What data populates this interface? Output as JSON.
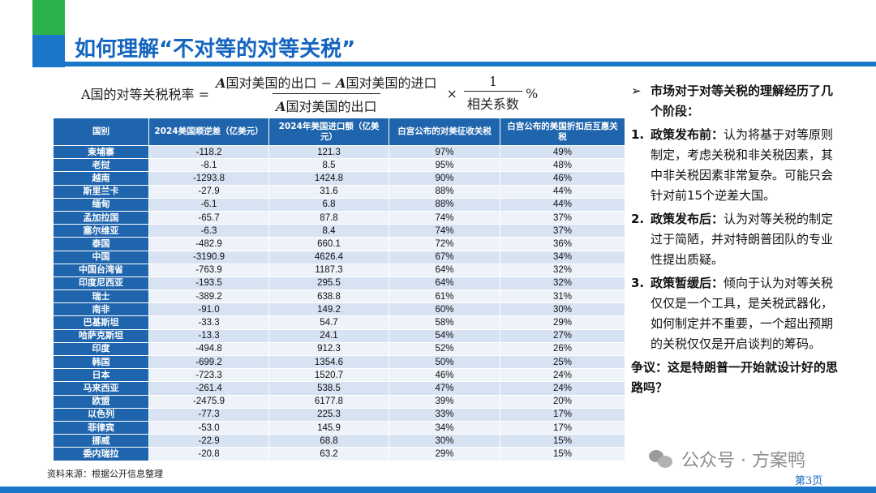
{
  "header": {
    "title": "如何理解“不对等的对等关税”"
  },
  "formula": {
    "lhs": "A国的对等关税税率 =",
    "numerator_a": "A",
    "numerator_text1": "国对美国的出口 − ",
    "numerator_b": "A",
    "numerator_text2": "国对美国的进口",
    "denominator_a": "A",
    "denominator_text": "国对美国的出口",
    "times": "×",
    "frac2_num": "1",
    "frac2_den": "相关系数",
    "percent": "%"
  },
  "table": {
    "headers": [
      "国别",
      "2024美国顺逆差（亿美元）",
      "2024年美国进口额（亿美元）",
      "白宫公布的对美征收关税",
      "白宫公布的美国折扣后互惠关税"
    ],
    "rows": [
      [
        "柬埔寨",
        "-118.2",
        "121.3",
        "97%",
        "49%"
      ],
      [
        "老挝",
        "-8.1",
        "8.5",
        "95%",
        "48%"
      ],
      [
        "越南",
        "-1293.8",
        "1424.8",
        "90%",
        "46%"
      ],
      [
        "斯里兰卡",
        "-27.9",
        "31.6",
        "88%",
        "44%"
      ],
      [
        "缅甸",
        "-6.1",
        "6.8",
        "88%",
        "44%"
      ],
      [
        "孟加拉国",
        "-65.7",
        "87.8",
        "74%",
        "37%"
      ],
      [
        "塞尔维亚",
        "-6.3",
        "8.4",
        "74%",
        "37%"
      ],
      [
        "泰国",
        "-482.9",
        "660.1",
        "72%",
        "36%"
      ],
      [
        "中国",
        "-3190.9",
        "4626.4",
        "67%",
        "34%"
      ],
      [
        "中国台湾省",
        "-763.9",
        "1187.3",
        "64%",
        "32%"
      ],
      [
        "印度尼西亚",
        "-193.5",
        "295.5",
        "64%",
        "32%"
      ],
      [
        "瑞士",
        "-389.2",
        "638.8",
        "61%",
        "31%"
      ],
      [
        "南非",
        "-91.0",
        "149.2",
        "60%",
        "30%"
      ],
      [
        "巴基斯坦",
        "-33.3",
        "54.7",
        "58%",
        "29%"
      ],
      [
        "哈萨克斯坦",
        "-13.3",
        "24.1",
        "54%",
        "27%"
      ],
      [
        "印度",
        "-494.8",
        "912.3",
        "52%",
        "26%"
      ],
      [
        "韩国",
        "-699.2",
        "1354.6",
        "50%",
        "25%"
      ],
      [
        "日本",
        "-723.3",
        "1520.7",
        "46%",
        "24%"
      ],
      [
        "马来西亚",
        "-261.4",
        "538.5",
        "47%",
        "24%"
      ],
      [
        "欧盟",
        "-2475.9",
        "6177.8",
        "39%",
        "20%"
      ],
      [
        "以色列",
        "-77.3",
        "225.3",
        "33%",
        "17%"
      ],
      [
        "菲律宾",
        "-53.0",
        "145.9",
        "34%",
        "17%"
      ],
      [
        "挪威",
        "-22.9",
        "68.8",
        "30%",
        "15%"
      ],
      [
        "委内瑞拉",
        "-20.8",
        "63.2",
        "29%",
        "15%"
      ]
    ]
  },
  "right": {
    "intro_arrow": "➢",
    "intro": "市场对于对等关税的理解经历了几个阶段：",
    "items": [
      {
        "num": "1.",
        "label": "政策发布前：",
        "text": "认为将基于对等原则制定，考虑关税和非关税因素，其中非关税因素非常复杂。可能只会针对前15个逆差大国。"
      },
      {
        "num": "2.",
        "label": "政策发布后：",
        "text": "认为对等关税的制定过于简陋，并对特朗普团队的专业性提出质疑。"
      },
      {
        "num": "3.",
        "label": "政策暂缓后：",
        "text": "倾向于认为对等关税仅仅是一个工具，是关税武器化，如何制定并不重要，一个超出预期的关税仅仅是开启谈判的筹码。"
      }
    ],
    "dispute": "争议：这是特朗普一开始就设计好的思路吗？"
  },
  "footer": {
    "source": "资料来源：根据公开信息整理",
    "page": "第3页",
    "watermark": "公众号 · 方案鸭"
  },
  "colors": {
    "brand_blue": "#1976c8",
    "brand_green": "#2bb24c",
    "table_header": "#1f65ad"
  }
}
